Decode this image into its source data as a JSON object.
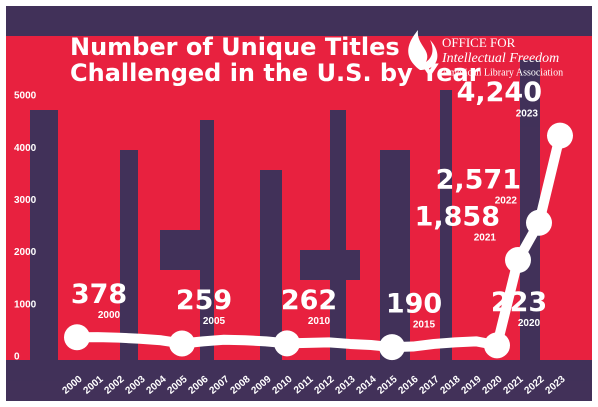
{
  "chart_data": {
    "type": "line",
    "title": [
      "Number of  Unique Titles",
      "Challenged in the U.S. by Year"
    ],
    "source": [
      "OFFICE FOR",
      "Intellectual Freedom",
      "American Library Association"
    ],
    "x": [
      2000,
      2001,
      2002,
      2003,
      2004,
      2005,
      2006,
      2007,
      2008,
      2009,
      2010,
      2011,
      2012,
      2013,
      2014,
      2015,
      2016,
      2017,
      2018,
      2019,
      2020,
      2021,
      2022,
      2023
    ],
    "values": [
      378,
      380,
      370,
      350,
      320,
      259,
      300,
      330,
      320,
      300,
      262,
      270,
      280,
      250,
      230,
      190,
      200,
      250,
      280,
      300,
      223,
      1858,
      2571,
      4240
    ],
    "value_labels": [
      "378",
      null,
      null,
      null,
      null,
      "259",
      null,
      null,
      null,
      null,
      "262",
      null,
      null,
      null,
      null,
      "190",
      null,
      null,
      null,
      null,
      "223",
      "1,858",
      "2,571",
      "4,240"
    ],
    "color": "#ffffff",
    "xlim": [
      2000,
      2023
    ],
    "ylim": [
      0,
      5000
    ],
    "yticks": [
      0,
      1000,
      2000,
      3000,
      4000,
      5000
    ]
  }
}
